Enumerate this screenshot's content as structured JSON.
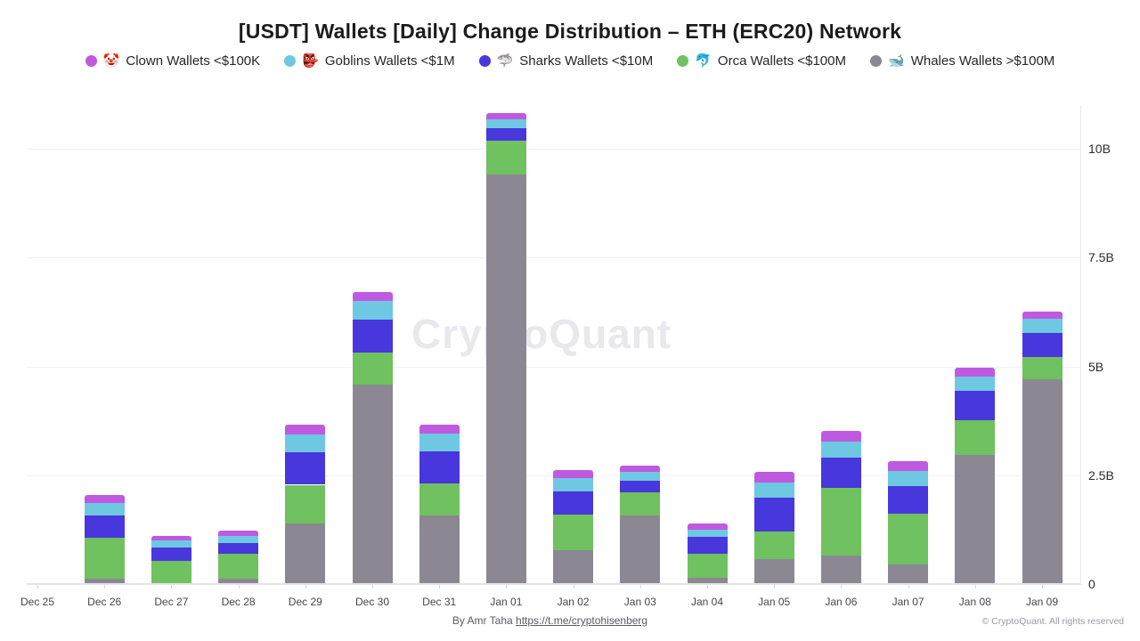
{
  "title": "[USDT] Wallets [Daily] Change Distribution – ETH (ERC20) Network",
  "watermark": "CryptoQuant",
  "legend": [
    {
      "key": "clown",
      "emoji": "🤡",
      "color": "#bf5ae0",
      "label": "Clown Wallets <$100K"
    },
    {
      "key": "goblins",
      "emoji": "👺",
      "color": "#6fc8e2",
      "label": "Goblins Wallets <$1M"
    },
    {
      "key": "sharks",
      "emoji": "🦈",
      "color": "#4737dc",
      "label": "Sharks Wallets <$10M"
    },
    {
      "key": "orca",
      "emoji": "🐬",
      "color": "#70c15f",
      "label": "Orca Wallets <$100M"
    },
    {
      "key": "whales",
      "emoji": "🐋",
      "color": "#8b8894",
      "label": "Whales Wallets >$100M"
    }
  ],
  "chart_data": {
    "type": "bar",
    "stacked": true,
    "unit": "billions USDT",
    "title": "[USDT] Wallets [Daily] Change Distribution – ETH (ERC20) Network",
    "xlabel": "",
    "ylabel": "",
    "ylim": [
      0,
      11.2
    ],
    "grid": true,
    "legend_position": "top",
    "y_ticks": [
      {
        "label": "0",
        "value": 0
      },
      {
        "label": "2.5B",
        "value": 2.5
      },
      {
        "label": "5B",
        "value": 5
      },
      {
        "label": "7.5B",
        "value": 7.5
      },
      {
        "label": "10B",
        "value": 10
      }
    ],
    "categories": [
      "Dec 25",
      "Dec 26",
      "Dec 27",
      "Dec 28",
      "Dec 29",
      "Dec 30",
      "Dec 31",
      "Jan 01",
      "Jan 02",
      "Jan 03",
      "Jan 04",
      "Jan 05",
      "Jan 06",
      "Jan 07",
      "Jan 08",
      "Jan 09"
    ],
    "series": [
      {
        "key": "whales",
        "name": "Whales Wallets >$100M",
        "color": "#8b8894",
        "values": [
          0,
          0.12,
          0,
          0.12,
          1.4,
          4.59,
          1.57,
          9.41,
          0.77,
          1.57,
          0.14,
          0.57,
          0.65,
          0.46,
          2.97,
          4.7
        ]
      },
      {
        "key": "orca",
        "name": "Orca Wallets <$100M",
        "color": "#70c15f",
        "values": [
          0,
          0.94,
          0.53,
          0.58,
          0.88,
          0.72,
          0.75,
          0.78,
          0.82,
          0.53,
          0.56,
          0.63,
          1.55,
          1.15,
          0.8,
          0.51
        ]
      },
      {
        "key": "sharks",
        "name": "Sharks Wallets <$10M",
        "color": "#4737dc",
        "values": [
          0,
          0.51,
          0.31,
          0.25,
          0.74,
          0.77,
          0.73,
          0.29,
          0.54,
          0.27,
          0.38,
          0.78,
          0.7,
          0.63,
          0.67,
          0.55
        ]
      },
      {
        "key": "goblins",
        "name": "Goblins Wallets <$1M",
        "color": "#6fc8e2",
        "values": [
          0,
          0.29,
          0.17,
          0.16,
          0.41,
          0.42,
          0.41,
          0.19,
          0.31,
          0.2,
          0.17,
          0.35,
          0.37,
          0.36,
          0.33,
          0.33
        ]
      },
      {
        "key": "clown",
        "name": "Clown Wallets <$100K",
        "color": "#bf5ae0",
        "values": [
          0,
          0.18,
          0.1,
          0.12,
          0.24,
          0.21,
          0.21,
          0.15,
          0.17,
          0.14,
          0.14,
          0.24,
          0.24,
          0.22,
          0.2,
          0.17
        ]
      }
    ],
    "stack_order": "bottom_to_top"
  },
  "footer": {
    "byline": "By Amr Taha",
    "link": "https://t.me/cryptohisenberg",
    "copyright": "© CryptoQuant. All rights reserved"
  }
}
